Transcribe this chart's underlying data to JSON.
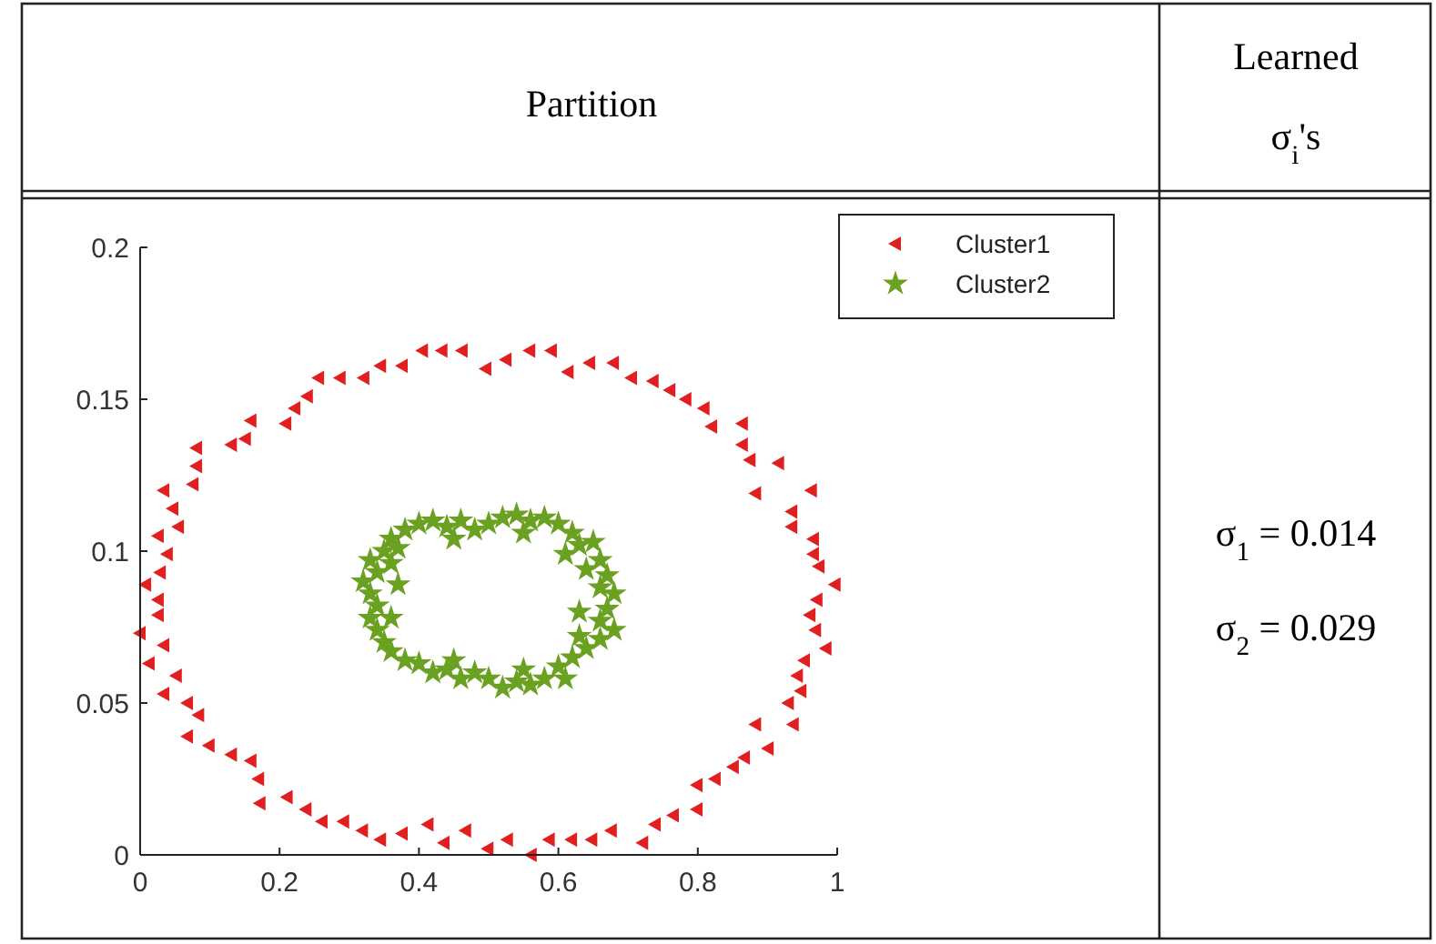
{
  "chart_data": {
    "type": "scatter",
    "title": "Partition",
    "annotations": [
      "Learned σ$_{i}$'s",
      "σ$_{1}$ = 0.014",
      "σ$_{2}$ = 0.029"
    ],
    "xlim": [
      0,
      1
    ],
    "xticks": [
      0,
      0.2,
      0.4,
      0.6,
      0.8,
      1
    ],
    "ylim": [
      0,
      0.2
    ],
    "yticks": [
      0,
      0.05,
      0.1,
      0.15,
      0.2
    ],
    "grid": false,
    "legend": "top right",
    "series": [
      {
        "name": "Cluster1",
        "color": "#e02020",
        "marker": "triangle",
        "x": [
          0.034,
          0.047,
          0.055,
          0.026,
          0.039,
          0.081,
          0.081,
          0.076,
          0.131,
          0.151,
          0.159,
          0.209,
          0.222,
          0.24,
          0.256,
          0.287,
          0.321,
          0.345,
          0.376,
          0.405,
          0.433,
          0.462,
          0.496,
          0.525,
          0.559,
          0.59,
          0.614,
          0.645,
          0.679,
          0.705,
          0.736,
          0.76,
          0.783,
          0.809,
          0.82,
          0.864,
          0.864,
          0.875,
          0.916,
          0.883,
          0.963,
          0.935,
          0.935,
          0.966,
          0.966,
          0.974,
          0.997,
          0.971,
          0.961,
          0.969,
          0.984,
          0.953,
          0.943,
          0.948,
          0.93,
          0.937,
          0.883,
          0.901,
          0.867,
          0.851,
          0.825,
          0.799,
          0.799,
          0.765,
          0.739,
          0.721,
          0.676,
          0.648,
          0.619,
          0.587,
          0.561,
          0.527,
          0.499,
          0.467,
          0.436,
          0.413,
          0.376,
          0.345,
          0.319,
          0.292,
          0.261,
          0.238,
          0.211,
          0.172,
          0.17,
          0.159,
          0.131,
          0.099,
          0.068,
          0.084,
          0.068,
          0.034,
          0.052,
          0.013,
          0.034,
          0.0,
          0.026,
          0.026,
          0.008,
          0.029
        ],
        "values": [
          0.12,
          0.114,
          0.108,
          0.105,
          0.099,
          0.134,
          0.128,
          0.122,
          0.135,
          0.137,
          0.143,
          0.142,
          0.147,
          0.151,
          0.157,
          0.157,
          0.157,
          0.161,
          0.161,
          0.166,
          0.166,
          0.166,
          0.16,
          0.163,
          0.166,
          0.166,
          0.159,
          0.162,
          0.162,
          0.157,
          0.156,
          0.153,
          0.15,
          0.147,
          0.141,
          0.142,
          0.135,
          0.13,
          0.129,
          0.119,
          0.12,
          0.113,
          0.108,
          0.104,
          0.099,
          0.095,
          0.089,
          0.084,
          0.079,
          0.074,
          0.068,
          0.064,
          0.059,
          0.054,
          0.05,
          0.043,
          0.043,
          0.035,
          0.032,
          0.029,
          0.025,
          0.023,
          0.015,
          0.013,
          0.01,
          0.004,
          0.008,
          0.005,
          0.005,
          0.005,
          0.0,
          0.005,
          0.002,
          0.008,
          0.004,
          0.01,
          0.007,
          0.005,
          0.008,
          0.011,
          0.011,
          0.015,
          0.019,
          0.017,
          0.025,
          0.031,
          0.033,
          0.036,
          0.039,
          0.046,
          0.05,
          0.053,
          0.059,
          0.063,
          0.069,
          0.073,
          0.079,
          0.084,
          0.089,
          0.093
        ]
      },
      {
        "name": "Cluster2",
        "color": "#6aa121",
        "marker": "star",
        "x": [
          0.36,
          0.38,
          0.4,
          0.42,
          0.44,
          0.46,
          0.48,
          0.5,
          0.52,
          0.54,
          0.56,
          0.58,
          0.6,
          0.62,
          0.63,
          0.61,
          0.65,
          0.66,
          0.67,
          0.66,
          0.68,
          0.67,
          0.66,
          0.68,
          0.66,
          0.64,
          0.63,
          0.62,
          0.6,
          0.61,
          0.58,
          0.56,
          0.54,
          0.52,
          0.5,
          0.48,
          0.46,
          0.44,
          0.42,
          0.4,
          0.38,
          0.36,
          0.35,
          0.34,
          0.33,
          0.34,
          0.33,
          0.32,
          0.34,
          0.33,
          0.35,
          0.36,
          0.37,
          0.45,
          0.55,
          0.64,
          0.63,
          0.55,
          0.45,
          0.36,
          0.37
        ],
        "values": [
          0.104,
          0.107,
          0.109,
          0.11,
          0.108,
          0.11,
          0.107,
          0.109,
          0.111,
          0.112,
          0.11,
          0.111,
          0.109,
          0.106,
          0.102,
          0.099,
          0.103,
          0.097,
          0.092,
          0.088,
          0.086,
          0.081,
          0.077,
          0.074,
          0.071,
          0.068,
          0.072,
          0.065,
          0.062,
          0.058,
          0.058,
          0.056,
          0.057,
          0.055,
          0.058,
          0.06,
          0.058,
          0.061,
          0.06,
          0.063,
          0.064,
          0.067,
          0.07,
          0.074,
          0.078,
          0.082,
          0.086,
          0.09,
          0.093,
          0.097,
          0.1,
          0.096,
          0.101,
          0.104,
          0.106,
          0.094,
          0.08,
          0.061,
          0.064,
          0.078,
          0.089
        ]
      }
    ]
  }
}
